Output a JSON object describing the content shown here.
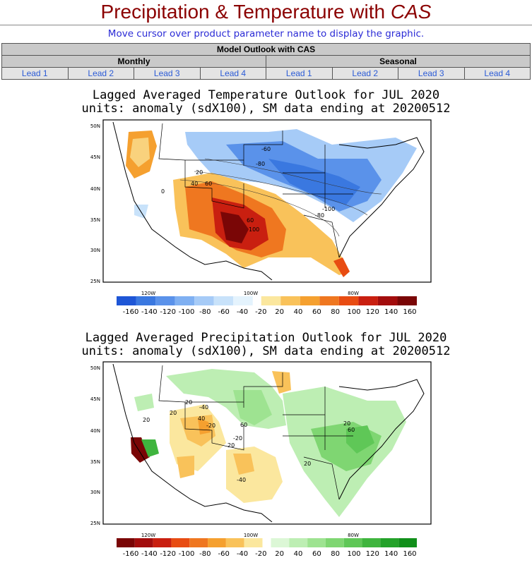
{
  "header": {
    "title_prefix": "Precipitation & Temperature with ",
    "title_emph": "CAS",
    "instructions": "Move cursor over product parameter name to display the graphic."
  },
  "nav": {
    "section_header": "Model Outlook with CAS",
    "group_monthly": "Monthly",
    "group_seasonal": "Seasonal",
    "monthly_leads": [
      "Lead 1",
      "Lead 2",
      "Lead 3",
      "Lead 4"
    ],
    "seasonal_leads": [
      "Lead 1",
      "Lead 2",
      "Lead 3",
      "Lead 4"
    ]
  },
  "temp_map": {
    "title_line1": "Lagged Averaged Temperature Outlook for JUL 2020",
    "title_line2": "units: anomaly (sdX100), SM data ending at 20200512",
    "lat_labels": [
      "50N",
      "45N",
      "40N",
      "35N",
      "30N",
      "25N"
    ],
    "lon_labels": [
      "120W",
      "100W",
      "80W"
    ],
    "contour_labels": [
      "-60",
      "-80",
      "20",
      "40",
      "60",
      "0",
      "-100",
      "-80",
      "60",
      "100"
    ],
    "colorbar_labels": [
      "-160",
      "-140",
      "-120",
      "-100",
      "-80",
      "-60",
      "-40",
      "-20",
      "20",
      "40",
      "60",
      "80",
      "100",
      "120",
      "140",
      "160"
    ],
    "neg_colors": [
      "#1e56d6",
      "#3a78e0",
      "#5a92ea",
      "#7fb0f2",
      "#a6cbf7",
      "#c8e2fa",
      "#e4f3fd"
    ],
    "pos_colors": [
      "#fbe79e",
      "#f9c25a",
      "#f5a02f",
      "#ef7720",
      "#e84c12",
      "#c91f10",
      "#a30d0d",
      "#7a0606"
    ]
  },
  "precip_map": {
    "title_line1": "Lagged Averaged Precipitation Outlook for JUL 2020",
    "title_line2": "units: anomaly (sdX100), SM data ending at 20200512",
    "lat_labels": [
      "50N",
      "45N",
      "40N",
      "35N",
      "30N",
      "25N"
    ],
    "lon_labels": [
      "120W",
      "100W",
      "80W"
    ],
    "contour_labels": [
      "20",
      "-40",
      "20",
      "-20",
      "40",
      "60",
      "20",
      "-20",
      "20",
      "20",
      "-40",
      "20",
      "60"
    ],
    "colorbar_labels": [
      "-160",
      "-140",
      "-120",
      "-100",
      "-80",
      "-60",
      "-40",
      "-20",
      "20",
      "40",
      "60",
      "80",
      "100",
      "120",
      "140",
      "160"
    ],
    "neg_colors": [
      "#7a0606",
      "#a30d0d",
      "#c91f10",
      "#e84c12",
      "#ef7720",
      "#f5a02f",
      "#f9c25a",
      "#fbe79e"
    ],
    "pos_colors": [
      "#dcf7d6",
      "#bdeeb3",
      "#9ee391",
      "#7fd672",
      "#5fc757",
      "#3fb53e",
      "#24a22a",
      "#118f1a"
    ]
  }
}
